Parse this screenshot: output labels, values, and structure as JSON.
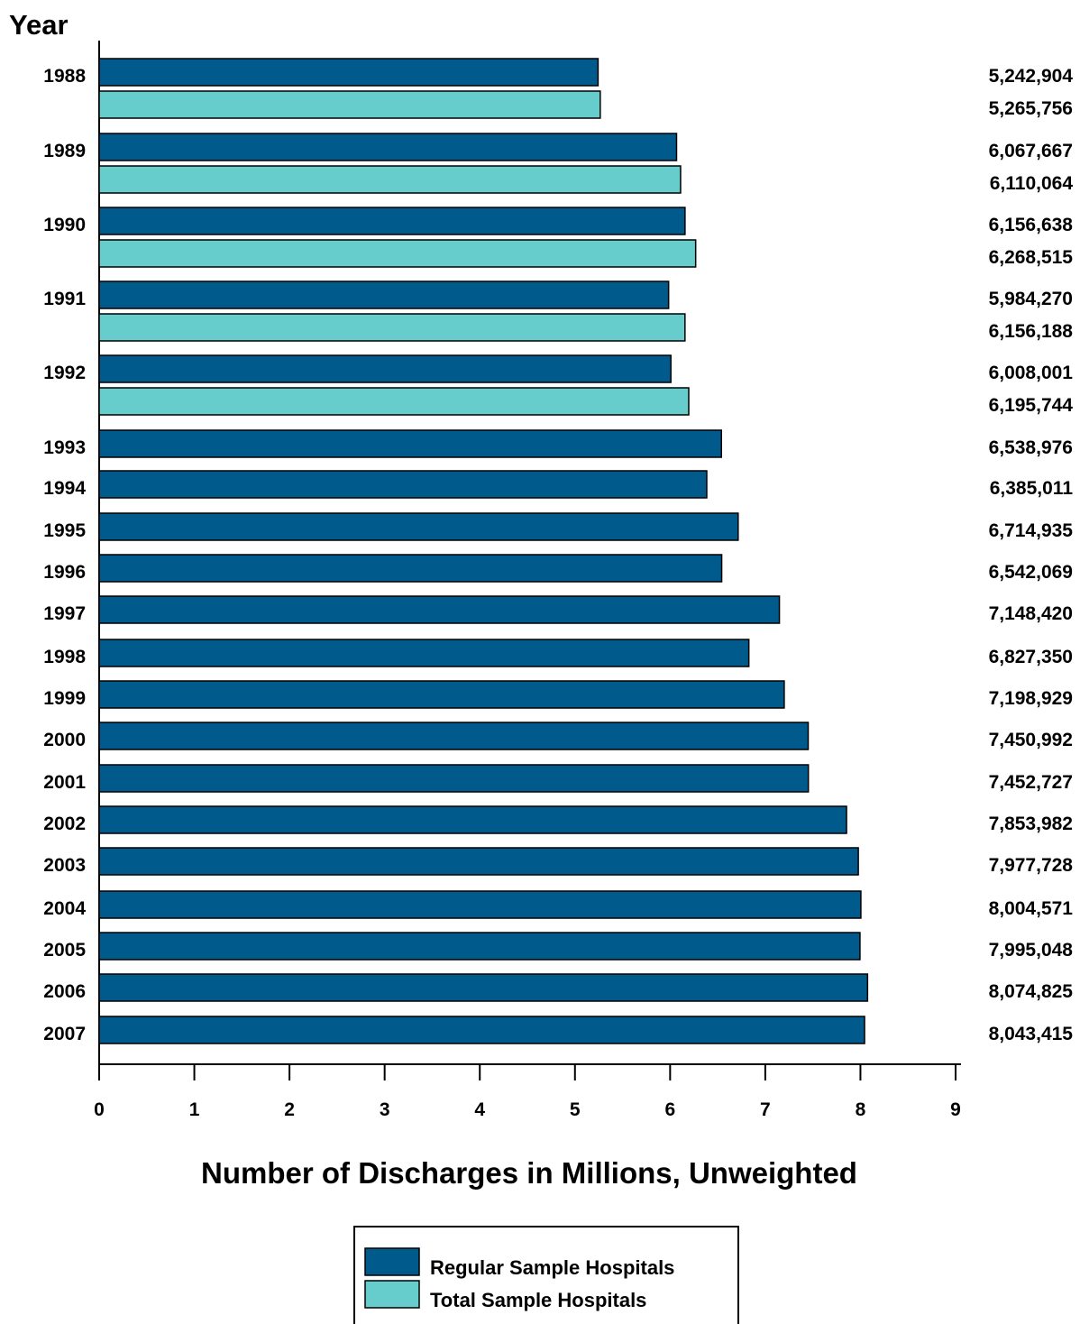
{
  "chart_data": {
    "type": "bar",
    "orientation": "horizontal",
    "ylabel": "Year",
    "xlabel": "Number of Discharges in Millions, Unweighted",
    "xlim": [
      0,
      9
    ],
    "x_ticks": [
      "0",
      "1",
      "2",
      "3",
      "4",
      "5",
      "6",
      "7",
      "8",
      "9"
    ],
    "grid": false,
    "legend_position": "bottom-center",
    "series": [
      {
        "name": "Regular Sample Hospitals",
        "color": "#005a8c"
      },
      {
        "name": "Total Sample Hospitals",
        "color": "#66cccc"
      }
    ],
    "bars": [
      {
        "year": "1988",
        "series": 0,
        "value": 5.242904,
        "label": "5,242,904"
      },
      {
        "year": "",
        "series": 1,
        "value": 5.265756,
        "label": "5,265,756"
      },
      {
        "year": "1989",
        "series": 0,
        "value": 6.067667,
        "label": "6,067,667"
      },
      {
        "year": "",
        "series": 1,
        "value": 6.110064,
        "label": "6,110,064"
      },
      {
        "year": "1990",
        "series": 0,
        "value": 6.156638,
        "label": "6,156,638"
      },
      {
        "year": "",
        "series": 1,
        "value": 6.268515,
        "label": "6,268,515"
      },
      {
        "year": "1991",
        "series": 0,
        "value": 5.98427,
        "label": "5,984,270"
      },
      {
        "year": "",
        "series": 1,
        "value": 6.156188,
        "label": "6,156,188"
      },
      {
        "year": "1992",
        "series": 0,
        "value": 6.008001,
        "label": "6,008,001"
      },
      {
        "year": "",
        "series": 1,
        "value": 6.195744,
        "label": "6,195,744"
      },
      {
        "year": "1993",
        "series": 0,
        "value": 6.538976,
        "label": "6,538,976"
      },
      {
        "year": "1994",
        "series": 0,
        "value": 6.385011,
        "label": "6,385,011"
      },
      {
        "year": "1995",
        "series": 0,
        "value": 6.714935,
        "label": "6,714,935"
      },
      {
        "year": "1996",
        "series": 0,
        "value": 6.542069,
        "label": "6,542,069"
      },
      {
        "year": "1997",
        "series": 0,
        "value": 7.14842,
        "label": "7,148,420"
      },
      {
        "year": "1998",
        "series": 0,
        "value": 6.82735,
        "label": "6,827,350"
      },
      {
        "year": "1999",
        "series": 0,
        "value": 7.198929,
        "label": "7,198,929"
      },
      {
        "year": "2000",
        "series": 0,
        "value": 7.450992,
        "label": "7,450,992"
      },
      {
        "year": "2001",
        "series": 0,
        "value": 7.452727,
        "label": "7,452,727"
      },
      {
        "year": "2002",
        "series": 0,
        "value": 7.853982,
        "label": "7,853,982"
      },
      {
        "year": "2003",
        "series": 0,
        "value": 7.977728,
        "label": "7,977,728"
      },
      {
        "year": "2004",
        "series": 0,
        "value": 8.004571,
        "label": "8,004,571"
      },
      {
        "year": "2005",
        "series": 0,
        "value": 7.995048,
        "label": "7,995,048"
      },
      {
        "year": "2006",
        "series": 0,
        "value": 8.074825,
        "label": "8,074,825"
      },
      {
        "year": "2007",
        "series": 0,
        "value": 8.043415,
        "label": "8,043,415"
      }
    ]
  }
}
